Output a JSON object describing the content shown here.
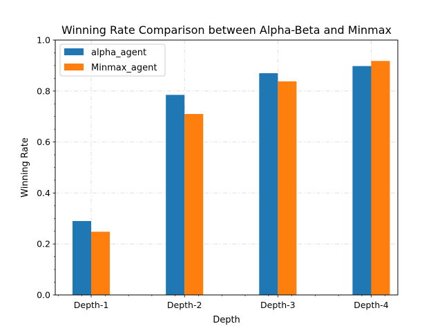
{
  "chart_data": {
    "type": "bar",
    "title": "Winning Rate Comparison between Alpha-Beta and Minmax",
    "xlabel": "Depth",
    "ylabel": "Winning Rate",
    "categories": [
      "Depth-1",
      "Depth-2",
      "Depth-3",
      "Depth-4"
    ],
    "series": [
      {
        "name": "alpha_agent",
        "color": "#1f77b4",
        "values": [
          0.29,
          0.785,
          0.87,
          0.898
        ]
      },
      {
        "name": "Minmax_agent",
        "color": "#ff7f0e",
        "values": [
          0.248,
          0.71,
          0.838,
          0.918
        ]
      }
    ],
    "ylim": [
      0.0,
      1.0
    ],
    "yticks": [
      "0.0",
      "0.2",
      "0.4",
      "0.6",
      "0.8",
      "1.0"
    ],
    "grid": true,
    "legend_position": "top-left"
  }
}
